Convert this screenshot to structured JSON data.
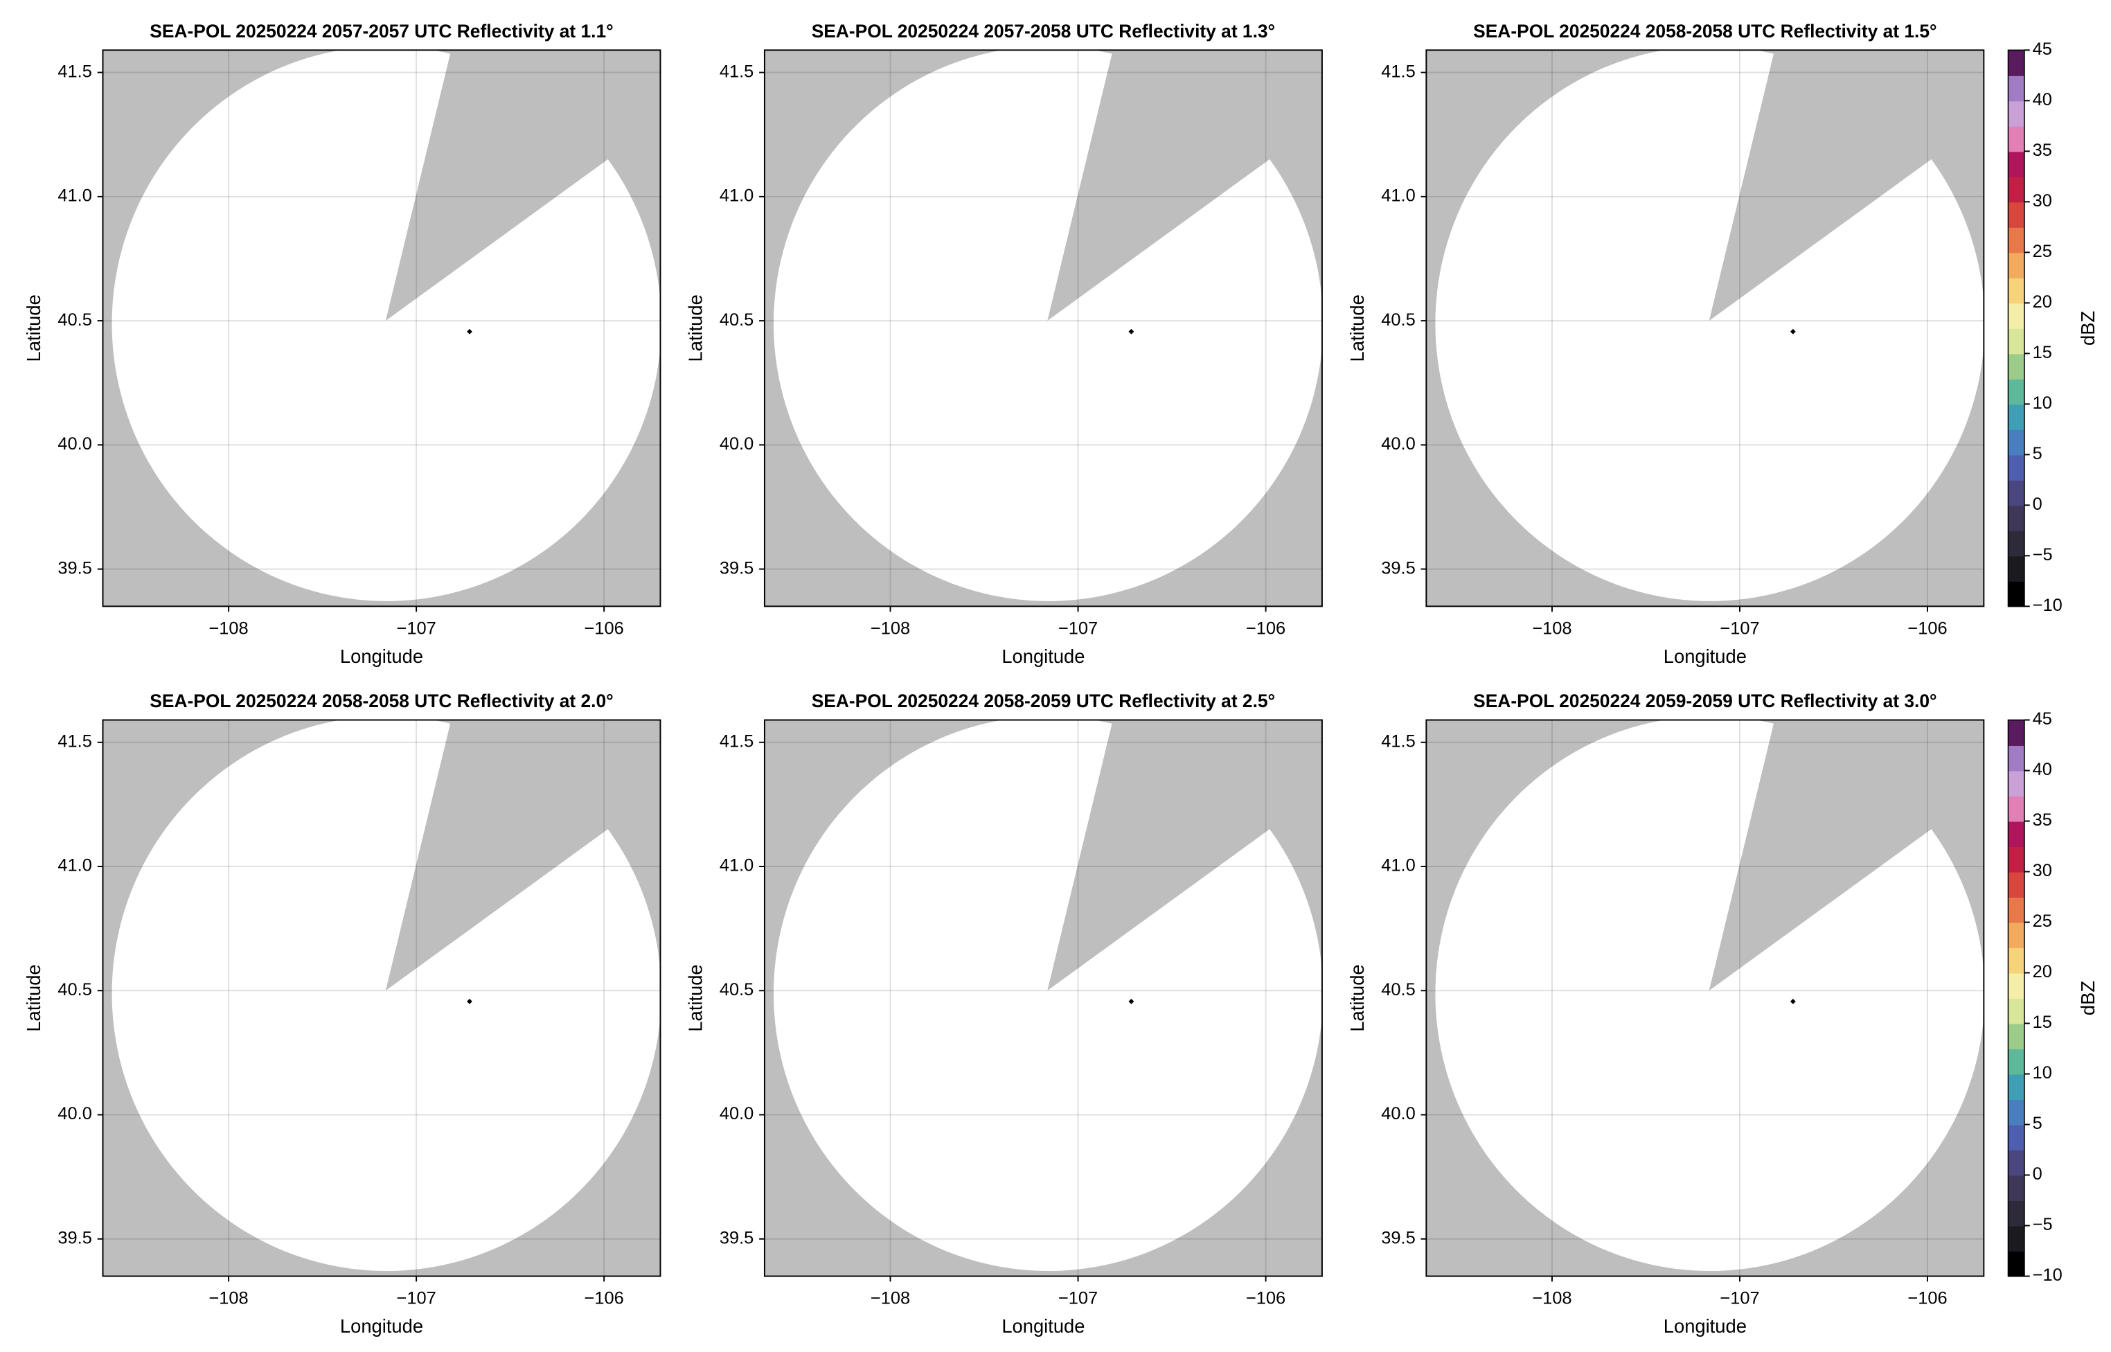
{
  "chart_data": [
    {
      "type": "radar",
      "title": "SEA-POL 20250224 2057-2057 UTC Reflectivity at 1.1°",
      "xlabel": "Longitude",
      "ylabel": "Latitude",
      "xlim": [
        -108.67,
        -105.7
      ],
      "ylim": [
        39.35,
        41.59
      ],
      "xticks": [
        {
          "value": -108,
          "label": "−108"
        },
        {
          "value": -107,
          "label": "−107"
        },
        {
          "value": -106,
          "label": "−106"
        }
      ],
      "yticks": [
        39.5,
        {
          "value": 40,
          "label": "40.0"
        },
        40.5,
        {
          "value": 41,
          "label": "41.0"
        },
        41.5
      ],
      "grid": true
    },
    {
      "type": "radar",
      "title": "SEA-POL 20250224 2057-2058 UTC Reflectivity at 1.3°",
      "xlabel": "Longitude",
      "ylabel": "Latitude",
      "xlim": [
        -108.67,
        -105.7
      ],
      "ylim": [
        39.35,
        41.59
      ],
      "xticks": [
        {
          "value": -108,
          "label": "−108"
        },
        {
          "value": -107,
          "label": "−107"
        },
        {
          "value": -106,
          "label": "−106"
        }
      ],
      "yticks": [
        39.5,
        {
          "value": 40,
          "label": "40.0"
        },
        40.5,
        {
          "value": 41,
          "label": "41.0"
        },
        41.5
      ],
      "grid": true
    },
    {
      "type": "radar",
      "title": "SEA-POL 20250224 2058-2058 UTC Reflectivity at 1.5°",
      "xlabel": "Longitude",
      "ylabel": "Latitude",
      "xlim": [
        -108.67,
        -105.7
      ],
      "ylim": [
        39.35,
        41.59
      ],
      "xticks": [
        {
          "value": -108,
          "label": "−108"
        },
        {
          "value": -107,
          "label": "−107"
        },
        {
          "value": -106,
          "label": "−106"
        }
      ],
      "yticks": [
        39.5,
        {
          "value": 40,
          "label": "40.0"
        },
        40.5,
        {
          "value": 41,
          "label": "41.0"
        },
        41.5
      ],
      "grid": true,
      "colorbar": {
        "label": "dBZ",
        "lim": [
          -10,
          45
        ],
        "ticks": [
          {
            "value": -10,
            "label": "−10"
          },
          {
            "value": -5,
            "label": "−5"
          },
          0,
          5,
          10,
          15,
          20,
          25,
          30,
          35,
          40,
          45
        ],
        "colors": [
          "#000000",
          "#1a1a1f",
          "#2e2a3a",
          "#3f3757",
          "#4a4680",
          "#4f5fb0",
          "#4a7fbf",
          "#3fa0b5",
          "#5eb89a",
          "#9ccc8a",
          "#d8e69a",
          "#f4eea8",
          "#f6d27a",
          "#f2ab5e",
          "#e8784a",
          "#d9463e",
          "#c21f45",
          "#b0145a",
          "#e27fb5",
          "#c9a0d8",
          "#a07cc4",
          "#5a1a5e"
        ]
      }
    },
    {
      "type": "radar",
      "title": "SEA-POL 20250224 2058-2058 UTC Reflectivity at 2.0°",
      "xlabel": "Longitude",
      "ylabel": "Latitude",
      "xlim": [
        -108.67,
        -105.7
      ],
      "ylim": [
        39.35,
        41.59
      ],
      "xticks": [
        {
          "value": -108,
          "label": "−108"
        },
        {
          "value": -107,
          "label": "−107"
        },
        {
          "value": -106,
          "label": "−106"
        }
      ],
      "yticks": [
        39.5,
        {
          "value": 40,
          "label": "40.0"
        },
        40.5,
        {
          "value": 41,
          "label": "41.0"
        },
        41.5
      ],
      "grid": true
    },
    {
      "type": "radar",
      "title": "SEA-POL 20250224 2058-2059 UTC Reflectivity at 2.5°",
      "xlabel": "Longitude",
      "ylabel": "Latitude",
      "xlim": [
        -108.67,
        -105.7
      ],
      "ylim": [
        39.35,
        41.59
      ],
      "xticks": [
        {
          "value": -108,
          "label": "−108"
        },
        {
          "value": -107,
          "label": "−107"
        },
        {
          "value": -106,
          "label": "−106"
        }
      ],
      "yticks": [
        39.5,
        {
          "value": 40,
          "label": "40.0"
        },
        40.5,
        {
          "value": 41,
          "label": "41.0"
        },
        41.5
      ],
      "grid": true
    },
    {
      "type": "radar",
      "title": "SEA-POL 20250224 2059-2059 UTC Reflectivity at 3.0°",
      "xlabel": "Longitude",
      "ylabel": "Latitude",
      "xlim": [
        -108.67,
        -105.7
      ],
      "ylim": [
        39.35,
        41.59
      ],
      "xticks": [
        {
          "value": -108,
          "label": "−108"
        },
        {
          "value": -107,
          "label": "−107"
        },
        {
          "value": -106,
          "label": "−106"
        }
      ],
      "yticks": [
        39.5,
        {
          "value": 40,
          "label": "40.0"
        },
        40.5,
        {
          "value": 41,
          "label": "41.0"
        },
        41.5
      ],
      "grid": true,
      "colorbar": {
        "label": "dBZ",
        "lim": [
          -10,
          45
        ],
        "ticks": [
          {
            "value": -10,
            "label": "−10"
          },
          {
            "value": -5,
            "label": "−5"
          },
          0,
          5,
          10,
          15,
          20,
          25,
          30,
          35,
          40,
          45
        ],
        "colors": [
          "#000000",
          "#1a1a1f",
          "#2e2a3a",
          "#3f3757",
          "#4a4680",
          "#4f5fb0",
          "#4a7fbf",
          "#3fa0b5",
          "#5eb89a",
          "#9ccc8a",
          "#d8e69a",
          "#f4eea8",
          "#f6d27a",
          "#f2ab5e",
          "#e8784a",
          "#d9463e",
          "#c21f45",
          "#b0145a",
          "#e27fb5",
          "#c9a0d8",
          "#a07cc4",
          "#5a1a5e"
        ]
      }
    }
  ]
}
